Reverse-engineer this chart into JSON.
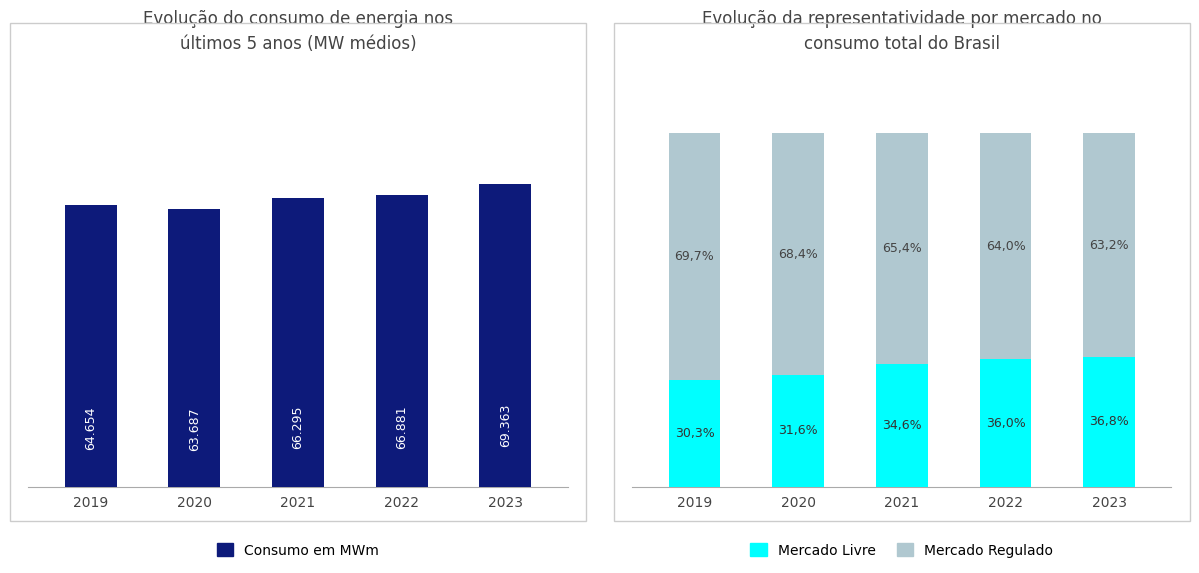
{
  "chart1": {
    "title": "Evolução do consumo de energia nos\núltimos 5 anos (MW médios)",
    "years": [
      "2019",
      "2020",
      "2021",
      "2022",
      "2023"
    ],
    "values": [
      64654,
      63687,
      66295,
      66881,
      69363
    ],
    "labels": [
      "64.654",
      "63.687",
      "66.295",
      "66.881",
      "69.363"
    ],
    "bar_color": "#0d1a7a",
    "legend_label": "Consumo em MWm",
    "title_fontsize": 12,
    "label_fontsize": 9
  },
  "chart2": {
    "title": "Evolução da representatividade por mercado no\nconsumo total do Brasil",
    "years": [
      "2019",
      "2020",
      "2021",
      "2022",
      "2023"
    ],
    "livre": [
      30.3,
      31.6,
      34.6,
      36.0,
      36.8
    ],
    "regulado": [
      69.7,
      68.4,
      65.4,
      64.0,
      63.2
    ],
    "livre_labels": [
      "30,3%",
      "31,6%",
      "34,6%",
      "36,0%",
      "36,8%"
    ],
    "regulado_labels": [
      "69,7%",
      "68,4%",
      "65,4%",
      "64,0%",
      "63,2%"
    ],
    "livre_color": "#00ffff",
    "regulado_color": "#b0c8d0",
    "legend_livre": "Mercado Livre",
    "legend_regulado": "Mercado Regulado",
    "title_fontsize": 12,
    "label_fontsize": 9
  },
  "bg_color": "#ffffff",
  "border_color": "#cccccc"
}
